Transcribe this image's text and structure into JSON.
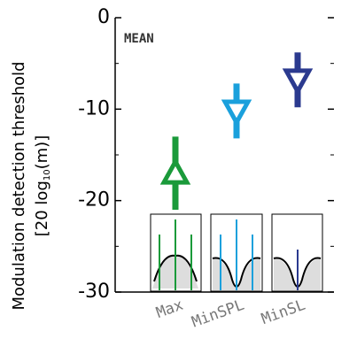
{
  "chart_data": {
    "type": "errorbar",
    "annotation": "MEAN",
    "ylabel": "Modulation detection threshold",
    "ylabel_line2": {
      "prefix": "[20 log",
      "subscript": "10",
      "suffix": "(m)]"
    },
    "categories": [
      "Max",
      "MinSPL",
      "MinSL"
    ],
    "values": [
      -17,
      -10.2,
      -6.8
    ],
    "errors": [
      4,
      3,
      3
    ],
    "colors": [
      "#1a9a3a",
      "#1aa0dc",
      "#2b3a8f"
    ],
    "markers": [
      "up",
      "down",
      "down"
    ],
    "ylim": [
      -30,
      0
    ],
    "yticks": [
      0,
      -10,
      -20,
      -30
    ],
    "yminor": [
      -5,
      -15,
      -25
    ]
  }
}
